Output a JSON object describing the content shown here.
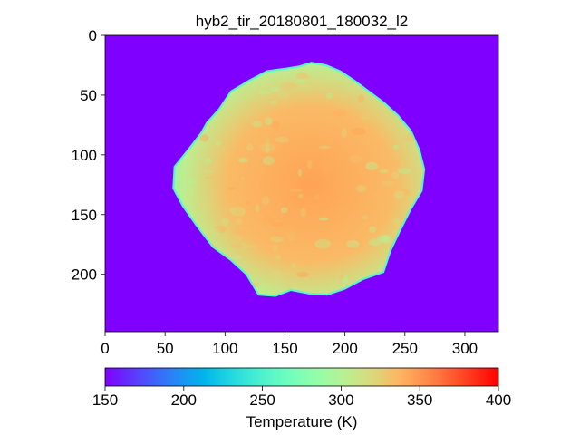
{
  "chart_data": {
    "type": "heatmap",
    "title": "hyb2_tir_20180801_180032_l2",
    "colormap": "rainbow",
    "background_value": 150,
    "image_extent": {
      "xlim": [
        0,
        328
      ],
      "ylim": [
        248,
        0
      ]
    },
    "x_ticks": [
      0,
      50,
      100,
      150,
      200,
      250,
      300
    ],
    "y_ticks": [
      0,
      50,
      100,
      150,
      200
    ],
    "colorbar": {
      "label": "Temperature (K)",
      "range": [
        150,
        400
      ],
      "ticks": [
        150,
        200,
        250,
        300,
        350,
        400
      ]
    },
    "object": {
      "description_values": "asteroid thermal image, temperatures mostly 300-350 K, limb ~260-290 K",
      "outline": [
        [
          172,
          23
        ],
        [
          184,
          25
        ],
        [
          196,
          30
        ],
        [
          208,
          38
        ],
        [
          220,
          47
        ],
        [
          232,
          56
        ],
        [
          244,
          67
        ],
        [
          255,
          80
        ],
        [
          262,
          96
        ],
        [
          266,
          112
        ],
        [
          264,
          130
        ],
        [
          255,
          145
        ],
        [
          245,
          165
        ],
        [
          238,
          180
        ],
        [
          232,
          198
        ],
        [
          215,
          204
        ],
        [
          200,
          212
        ],
        [
          185,
          217
        ],
        [
          170,
          216
        ],
        [
          155,
          213
        ],
        [
          142,
          218
        ],
        [
          128,
          217
        ],
        [
          118,
          200
        ],
        [
          105,
          188
        ],
        [
          90,
          177
        ],
        [
          77,
          160
        ],
        [
          65,
          143
        ],
        [
          57,
          128
        ],
        [
          58,
          110
        ],
        [
          70,
          95
        ],
        [
          80,
          82
        ],
        [
          85,
          73
        ],
        [
          95,
          62
        ],
        [
          105,
          47
        ],
        [
          120,
          38
        ],
        [
          135,
          30
        ],
        [
          150,
          28
        ],
        [
          162,
          26
        ]
      ],
      "center_value": 340,
      "edge_value": 275
    }
  }
}
